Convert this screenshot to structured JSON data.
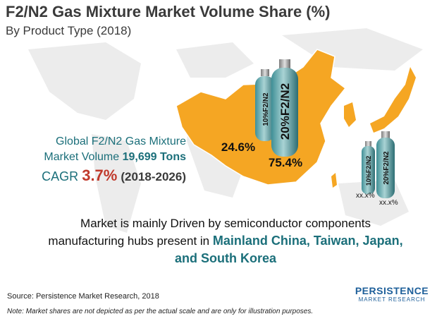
{
  "header": {
    "title": "F2/N2 Gas Mixture Market Volume Share (%)",
    "subtitle": "By Product Type (2018)"
  },
  "summary": {
    "line1": "Global F2/N2 Gas Mixture",
    "line2": "Market Volume",
    "volume": "19,699 Tons",
    "cagr_label": "CAGR",
    "cagr": "3.7%",
    "period": "(2018-2026)"
  },
  "china": {
    "cylinders": [
      {
        "label": "10%F2/N2",
        "share": "24.6%"
      },
      {
        "label": "20%F2/N2",
        "share": "75.4%"
      }
    ]
  },
  "japan": {
    "cylinders": [
      {
        "label": "10%F2/N2",
        "share": "xx.x%"
      },
      {
        "label": "20%F2/N2",
        "share": "xx.x%"
      }
    ]
  },
  "driver": {
    "text": "Market is mainly Driven by semiconductor components manufacturing hubs present in",
    "highlight": "Mainland China, Taiwan, Japan, and South Korea"
  },
  "footer": {
    "source": "Source: Persistence Market Research, 2018",
    "note": "Note: Market shares are not depicted as per the actual scale and are only for illustration purposes."
  },
  "logo": {
    "name": "PERSISTENCE",
    "tagline": "MARKET RESEARCH"
  }
}
